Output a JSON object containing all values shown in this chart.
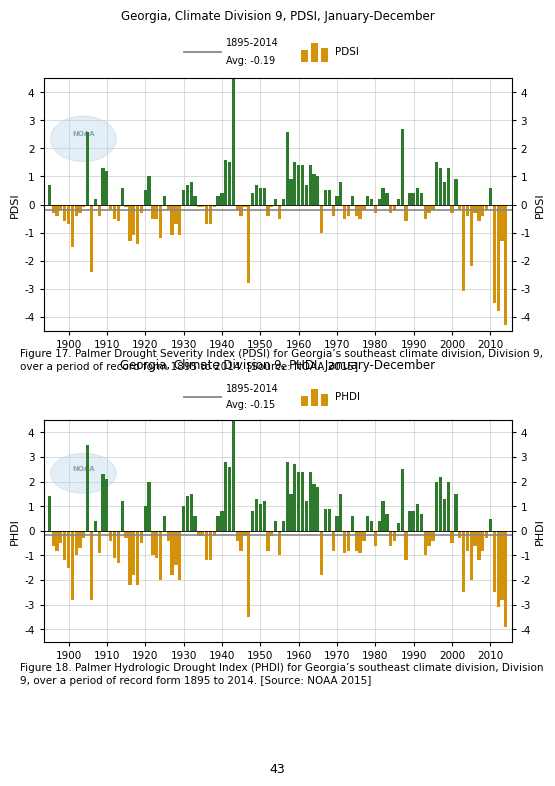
{
  "title1": "Georgia, Climate Division 9, PDSI, January-December",
  "title2": "Georgia, Climate Division 9, PHDI, January-December",
  "legend_period": "1895-2014",
  "legend_avg1": "Avg: -0.19",
  "legend_avg2": "Avg: -0.15",
  "legend_label1": "PDSI",
  "legend_label2": "PHDI",
  "ylabel1": "PDSI",
  "ylabel2": "PHDI",
  "ylim": [
    -4.5,
    4.5
  ],
  "yticks": [
    -4,
    -3,
    -2,
    -1,
    0,
    1,
    2,
    3,
    4
  ],
  "color_positive": "#2d7a2d",
  "color_negative": "#d4920a",
  "avg_line_color": "#888888",
  "background_color": "#ffffff",
  "grid_color": "#cccccc",
  "fig_caption1": "Figure 17. Palmer Drought Severity Index (PDSI) for Georgia’s southeast climate division, Division 9,\nover a period of record form 1895 to 2014. [Source: NOAA 2015]",
  "fig_caption2": "Figure 18. Palmer Hydrologic Drought Index (PHDI) for Georgia’s southeast climate division, Division\n9, over a period of record form 1895 to 2014. [Source: NOAA 2015]",
  "page_number": "43",
  "pdsi_values": [
    0.7,
    -0.3,
    -0.4,
    -0.2,
    -0.6,
    -0.7,
    -1.5,
    -0.4,
    -0.3,
    -0.1,
    2.6,
    -2.4,
    0.2,
    -0.4,
    1.3,
    1.2,
    -0.2,
    -0.5,
    -0.6,
    0.6,
    -0.1,
    -1.3,
    -1.1,
    -1.4,
    -0.3,
    0.5,
    1.0,
    -0.5,
    -0.5,
    -1.2,
    0.3,
    -0.2,
    -1.1,
    -0.7,
    -1.1,
    0.5,
    0.7,
    0.8,
    0.3,
    -0.1,
    -0.1,
    -0.7,
    -0.7,
    -0.1,
    0.3,
    0.4,
    1.6,
    1.5,
    4.7,
    -0.2,
    -0.4,
    -0.1,
    -2.8,
    0.4,
    0.7,
    0.6,
    0.6,
    -0.4,
    -0.1,
    0.2,
    -0.5,
    0.2,
    2.6,
    0.9,
    1.5,
    1.4,
    1.4,
    0.7,
    1.4,
    1.1,
    1.0,
    -1.0,
    0.5,
    0.5,
    -0.4,
    0.3,
    0.8,
    -0.5,
    -0.4,
    0.3,
    -0.4,
    -0.5,
    -0.2,
    0.3,
    0.2,
    -0.3,
    0.2,
    0.6,
    0.4,
    -0.3,
    -0.2,
    0.2,
    2.7,
    -0.6,
    0.4,
    0.4,
    0.6,
    0.4,
    -0.5,
    -0.3,
    -0.2,
    1.5,
    1.3,
    0.8,
    1.3,
    -0.3,
    0.9,
    -0.2,
    -3.1,
    -0.4,
    -2.2,
    -0.3,
    -0.6,
    -0.4,
    -0.2,
    0.6,
    -3.5,
    -3.8,
    -1.3,
    -4.3
  ],
  "phdi_values": [
    1.4,
    -0.6,
    -0.8,
    -0.5,
    -1.2,
    -1.5,
    -2.8,
    -1.0,
    -0.7,
    -0.3,
    3.5,
    -2.8,
    0.4,
    -0.9,
    2.3,
    2.1,
    -0.4,
    -1.1,
    -1.3,
    1.2,
    -0.3,
    -2.2,
    -1.8,
    -2.2,
    -0.5,
    1.0,
    2.0,
    -1.0,
    -1.1,
    -2.0,
    0.6,
    -0.4,
    -1.8,
    -1.4,
    -2.0,
    1.0,
    1.4,
    1.5,
    0.6,
    -0.2,
    -0.2,
    -1.2,
    -1.2,
    -0.2,
    0.6,
    0.8,
    2.8,
    2.6,
    4.9,
    -0.4,
    -0.8,
    -0.2,
    -3.5,
    0.8,
    1.3,
    1.1,
    1.2,
    -0.8,
    -0.2,
    0.4,
    -1.0,
    0.4,
    2.8,
    1.5,
    2.7,
    2.4,
    2.4,
    1.2,
    2.4,
    1.9,
    1.8,
    -1.8,
    0.9,
    0.9,
    -0.8,
    0.6,
    1.5,
    -0.9,
    -0.8,
    0.6,
    -0.8,
    -0.9,
    -0.4,
    0.6,
    0.4,
    -0.6,
    0.4,
    1.2,
    0.7,
    -0.6,
    -0.4,
    0.3,
    2.5,
    -1.2,
    0.8,
    0.8,
    1.1,
    0.7,
    -1.0,
    -0.6,
    -0.4,
    2.0,
    2.2,
    1.3,
    2.0,
    -0.5,
    1.5,
    -0.3,
    -2.5,
    -0.8,
    -2.0,
    -0.6,
    -1.2,
    -0.8,
    -0.3,
    0.5,
    -2.5,
    -3.1,
    -2.8,
    -3.9
  ],
  "years": [
    1895,
    1896,
    1897,
    1898,
    1899,
    1900,
    1901,
    1902,
    1903,
    1904,
    1905,
    1906,
    1907,
    1908,
    1909,
    1910,
    1911,
    1912,
    1913,
    1914,
    1915,
    1916,
    1917,
    1918,
    1919,
    1920,
    1921,
    1922,
    1923,
    1924,
    1925,
    1926,
    1927,
    1928,
    1929,
    1930,
    1931,
    1932,
    1933,
    1934,
    1935,
    1936,
    1937,
    1938,
    1939,
    1940,
    1941,
    1942,
    1943,
    1944,
    1945,
    1946,
    1947,
    1948,
    1949,
    1950,
    1951,
    1952,
    1953,
    1954,
    1955,
    1956,
    1957,
    1958,
    1959,
    1960,
    1961,
    1962,
    1963,
    1964,
    1965,
    1966,
    1967,
    1968,
    1969,
    1970,
    1971,
    1972,
    1973,
    1974,
    1975,
    1976,
    1977,
    1978,
    1979,
    1980,
    1981,
    1982,
    1983,
    1984,
    1985,
    1986,
    1987,
    1988,
    1989,
    1990,
    1991,
    1992,
    1993,
    1994,
    1995,
    1996,
    1997,
    1998,
    1999,
    2000,
    2001,
    2002,
    2003,
    2004,
    2005,
    2006,
    2007,
    2008,
    2009,
    2010,
    2011,
    2012,
    2013,
    2014
  ]
}
